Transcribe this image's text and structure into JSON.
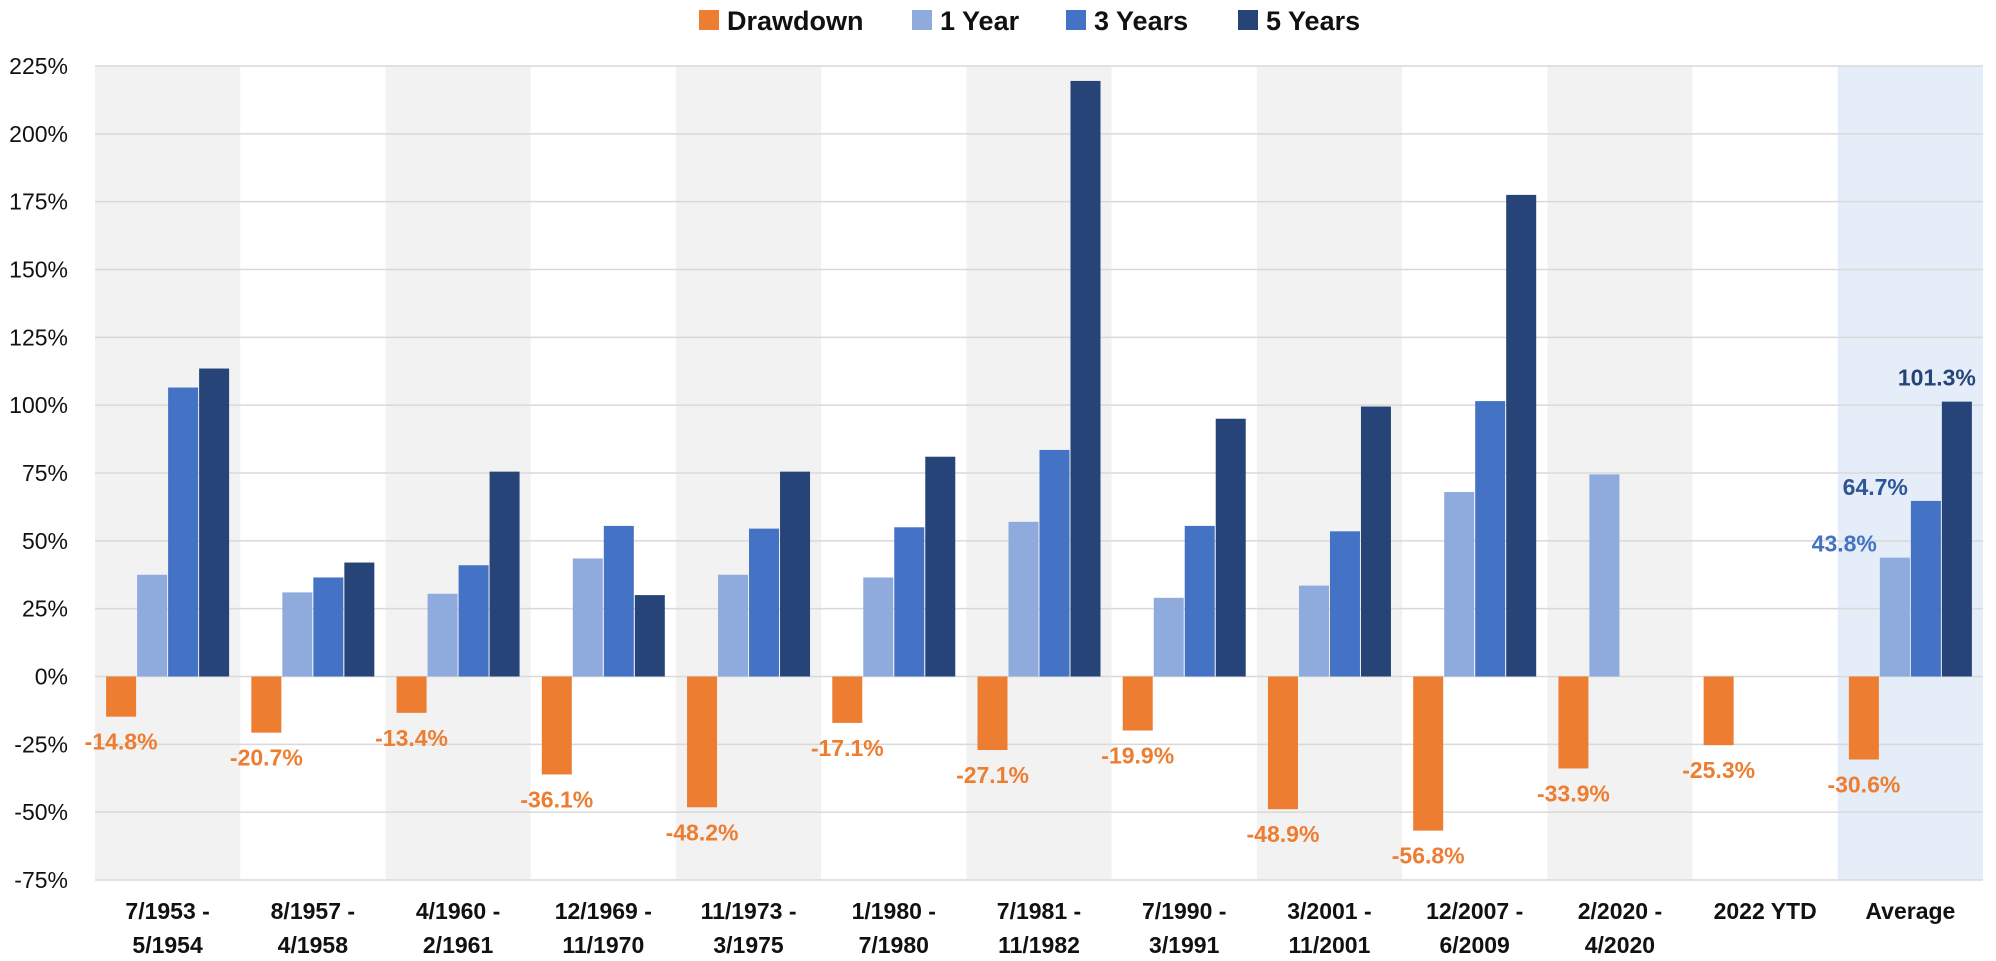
{
  "chart_data": {
    "type": "bar",
    "categories": [
      [
        "7/1953 -",
        "5/1954"
      ],
      [
        "8/1957 -",
        "4/1958"
      ],
      [
        "4/1960 -",
        "2/1961"
      ],
      [
        "12/1969 -",
        "11/1970"
      ],
      [
        "11/1973 -",
        "3/1975"
      ],
      [
        "1/1980 -",
        "7/1980"
      ],
      [
        "7/1981 -",
        "11/1982"
      ],
      [
        "7/1990 -",
        "3/1991"
      ],
      [
        "3/2001 -",
        "11/2001"
      ],
      [
        "12/2007 -",
        "6/2009"
      ],
      [
        "2/2020 -",
        "4/2020"
      ],
      [
        "2022 YTD"
      ],
      [
        "Average"
      ]
    ],
    "series": [
      {
        "name": "Drawdown",
        "color": "#ED7D31",
        "values": [
          -14.8,
          -20.7,
          -13.4,
          -36.1,
          -48.2,
          -17.1,
          -27.1,
          -19.9,
          -48.9,
          -56.8,
          -33.9,
          -25.3,
          -30.6
        ]
      },
      {
        "name": "1 Year",
        "color": "#8FAADC",
        "values": [
          37.5,
          31,
          30.5,
          43.5,
          37.5,
          36.5,
          57,
          29,
          33.5,
          68,
          74.5,
          null,
          43.8
        ]
      },
      {
        "name": "3 Years",
        "color": "#4472C4",
        "values": [
          106.5,
          36.5,
          41,
          55.5,
          54.5,
          55,
          83.5,
          55.5,
          53.5,
          101.5,
          null,
          null,
          64.7
        ]
      },
      {
        "name": "5 Years",
        "color": "#264478",
        "values": [
          113.5,
          42,
          75.5,
          30,
          75.5,
          81,
          219.5,
          95,
          99.5,
          177.5,
          null,
          null,
          101.3
        ]
      }
    ],
    "data_labels": {
      "Drawdown": [
        "-14.8%",
        "-20.7%",
        "-13.4%",
        "-36.1%",
        "-48.2%",
        "-17.1%",
        "-27.1%",
        "-19.9%",
        "-48.9%",
        "-56.8%",
        "-33.9%",
        "-25.3%",
        "-30.6%"
      ],
      "average_positive": [
        "43.8%",
        "64.7%",
        "101.3%"
      ]
    },
    "y_ticks": [
      "225%",
      "200%",
      "175%",
      "150%",
      "125%",
      "100%",
      "75%",
      "50%",
      "25%",
      "0%",
      "-25%",
      "-50%",
      "-75%"
    ],
    "ylim": [
      -75,
      225
    ],
    "ytick_step": 25,
    "grid": true,
    "legend": "top-center",
    "band_colors": {
      "shaded": "#F2F2F2",
      "average": "#E4EDF8"
    }
  }
}
